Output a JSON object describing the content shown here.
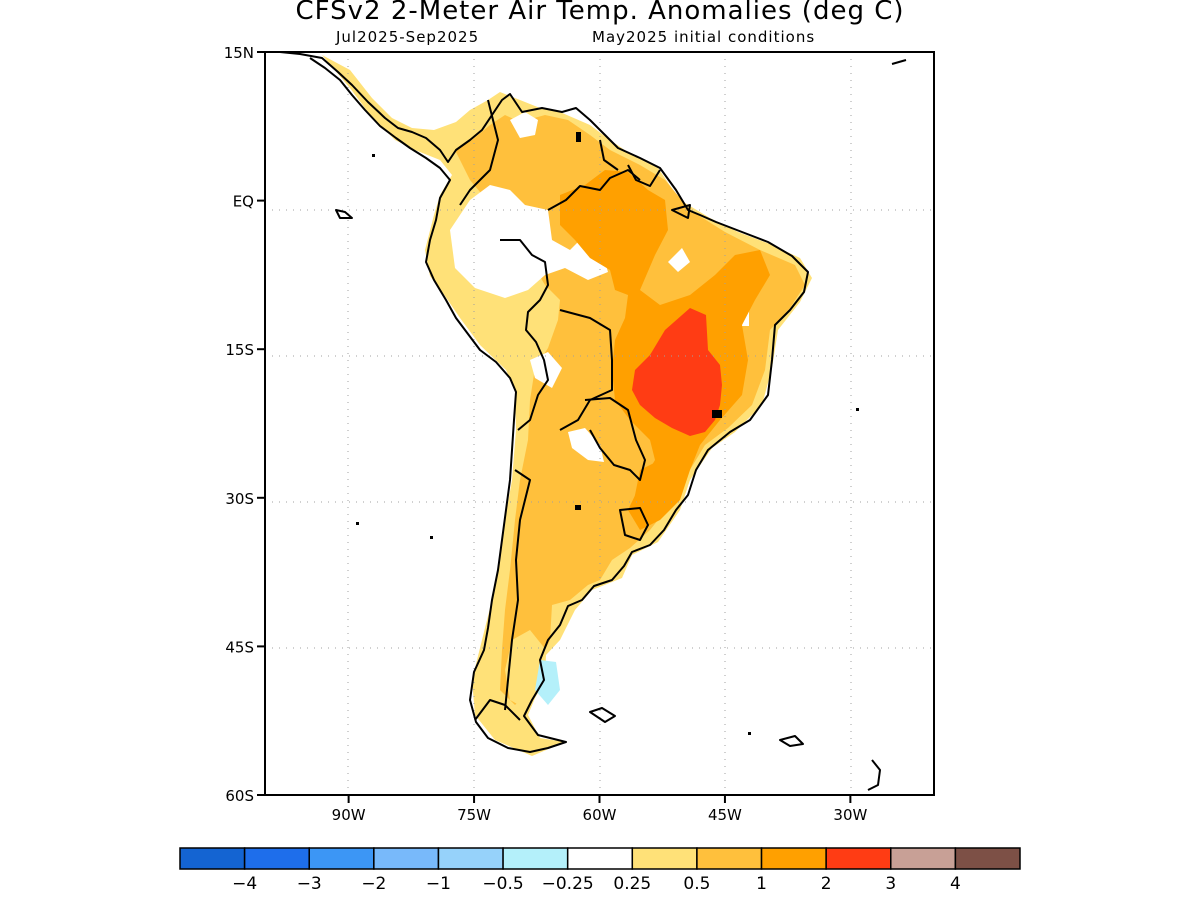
{
  "title": "CFSv2 2-Meter Air Temp. Anomalies (deg C)",
  "subtitle_left": "Jul2025-Sep2025",
  "subtitle_right": "May2025 initial conditions",
  "map": {
    "lon_range": [
      -100,
      -20
    ],
    "lat_range": [
      -60,
      15
    ],
    "lat_ticks": [
      {
        "value": 15,
        "label": "15N"
      },
      {
        "value": 0,
        "label": "EQ"
      },
      {
        "value": -15,
        "label": "15S"
      },
      {
        "value": -30,
        "label": "30S"
      },
      {
        "value": -45,
        "label": "45S"
      },
      {
        "value": -60,
        "label": "60S"
      }
    ],
    "lon_ticks": [
      {
        "value": -90,
        "label": "90W"
      },
      {
        "value": -75,
        "label": "75W"
      },
      {
        "value": -60,
        "label": "60W"
      },
      {
        "value": -45,
        "label": "45W"
      },
      {
        "value": -30,
        "label": "30W"
      }
    ],
    "grid": true
  },
  "colorbar": {
    "colors": [
      "#1464d2",
      "#1e6eeb",
      "#3c96f5",
      "#78b9fa",
      "#96d2fa",
      "#b4f0fa",
      "#ffffff",
      "#ffe178",
      "#ffc03c",
      "#ffa000",
      "#ff3c14",
      "#c8a096",
      "#7d5046"
    ],
    "labels": [
      "−4",
      "−3",
      "−2",
      "−1",
      "−0.5",
      "−0.25",
      "0.25",
      "0.5",
      "1",
      "2",
      "3",
      "4"
    ]
  },
  "colors": {
    "anomaly_0_5_to_1": "#ffc03c",
    "anomaly_1_to_2": "#ffa000",
    "anomaly_2_to_3": "#ff3c14",
    "anomaly_0_25_to_0_5": "#ffe178",
    "near_zero": "#ffffff"
  }
}
